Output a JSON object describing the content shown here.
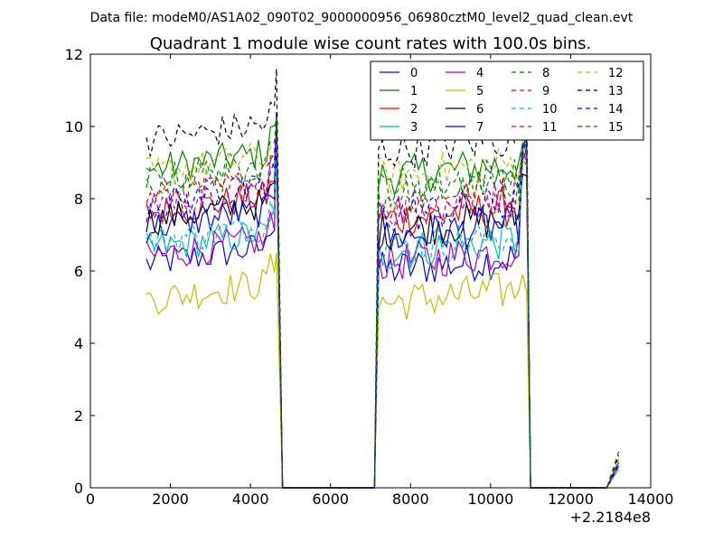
{
  "chart_data": {
    "type": "line",
    "suptitle": "Data file: modeM0/AS1A02_090T02_9000000956_06980cztM0_level2_quad_clean.evt",
    "title": "Quadrant 1 module wise count rates with 100.0s bins.",
    "xlabel": "",
    "ylabel": "",
    "xlim": [
      0,
      14000
    ],
    "ylim": [
      0,
      12
    ],
    "x_offset_label": "+2.2184e8",
    "xticks": [
      0,
      2000,
      4000,
      6000,
      8000,
      10000,
      12000,
      14000
    ],
    "yticks": [
      0,
      2,
      4,
      6,
      8,
      10,
      12
    ],
    "grid": false,
    "legend_position": "top-right",
    "legend_columns": 4,
    "segments": [
      {
        "name": "segment-1",
        "x_start": 1400,
        "x_end": 4600,
        "step": 100
      },
      {
        "name": "segment-2",
        "x_start": 7200,
        "x_end": 10900,
        "step": 100
      }
    ],
    "gap_x_start": 4800,
    "gap_x_end": 7100,
    "tail": {
      "x_start": 10900,
      "zero_start": 11000,
      "zero_end": 12900,
      "end": 13200
    },
    "series": [
      {
        "name": "0",
        "color": "#0000ff",
        "dash": "solid",
        "level_a": 6.2,
        "level_b": 6.0,
        "peak": 10.3,
        "tail_end": 0.6
      },
      {
        "name": "1",
        "color": "#008000",
        "dash": "solid",
        "level_a": 8.8,
        "level_b": 8.6,
        "peak": 10.2,
        "tail_end": 0.7
      },
      {
        "name": "2",
        "color": "#ff0000",
        "dash": "solid",
        "level_a": 7.6,
        "level_b": 7.4,
        "peak": 10.0,
        "tail_end": 0.6
      },
      {
        "name": "3",
        "color": "#00bfbf",
        "dash": "solid",
        "level_a": 6.6,
        "level_b": 6.5,
        "peak": 9.9,
        "tail_end": 0.6
      },
      {
        "name": "4",
        "color": "#bf00bf",
        "dash": "solid",
        "level_a": 6.4,
        "level_b": 6.2,
        "peak": 10.1,
        "tail_end": 0.6
      },
      {
        "name": "5",
        "color": "#bfbf00",
        "dash": "solid",
        "level_a": 5.2,
        "level_b": 5.1,
        "peak": 6.5,
        "tail_end": 0.5
      },
      {
        "name": "6",
        "color": "#000000",
        "dash": "solid",
        "level_a": 7.4,
        "level_b": 7.1,
        "peak": 9.4,
        "tail_end": 0.6
      },
      {
        "name": "7",
        "color": "#0000ff",
        "dash": "solid",
        "level_a": 7.2,
        "level_b": 6.9,
        "peak": 10.4,
        "tail_end": 0.6
      },
      {
        "name": "8",
        "color": "#008000",
        "dash": "dashed",
        "level_a": 8.2,
        "level_b": 8.0,
        "peak": 10.1,
        "tail_end": 0.8
      },
      {
        "name": "9",
        "color": "#ff0000",
        "dash": "dashed",
        "level_a": 8.0,
        "level_b": 7.8,
        "peak": 10.0,
        "tail_end": 0.7
      },
      {
        "name": "10",
        "color": "#00bfbf",
        "dash": "dashed",
        "level_a": 6.8,
        "level_b": 6.6,
        "peak": 10.0,
        "tail_end": 0.6
      },
      {
        "name": "11",
        "color": "#bf00bf",
        "dash": "dashed",
        "level_a": 7.9,
        "level_b": 7.7,
        "peak": 10.0,
        "tail_end": 0.7
      },
      {
        "name": "12",
        "color": "#bfbf00",
        "dash": "dashed",
        "level_a": 8.7,
        "level_b": 8.6,
        "peak": 10.2,
        "tail_end": 0.8
      },
      {
        "name": "13",
        "color": "#000000",
        "dash": "dashed",
        "level_a": 9.6,
        "level_b": 9.3,
        "peak": 11.6,
        "tail_end": 0.9
      },
      {
        "name": "14",
        "color": "#0000ff",
        "dash": "dashed",
        "level_a": 7.8,
        "level_b": 7.5,
        "peak": 10.1,
        "tail_end": 0.7
      },
      {
        "name": "15",
        "color": "#008000",
        "dash": "dashed",
        "level_a": 8.5,
        "level_b": 8.3,
        "peak": 10.2,
        "tail_end": 1.0
      }
    ]
  }
}
